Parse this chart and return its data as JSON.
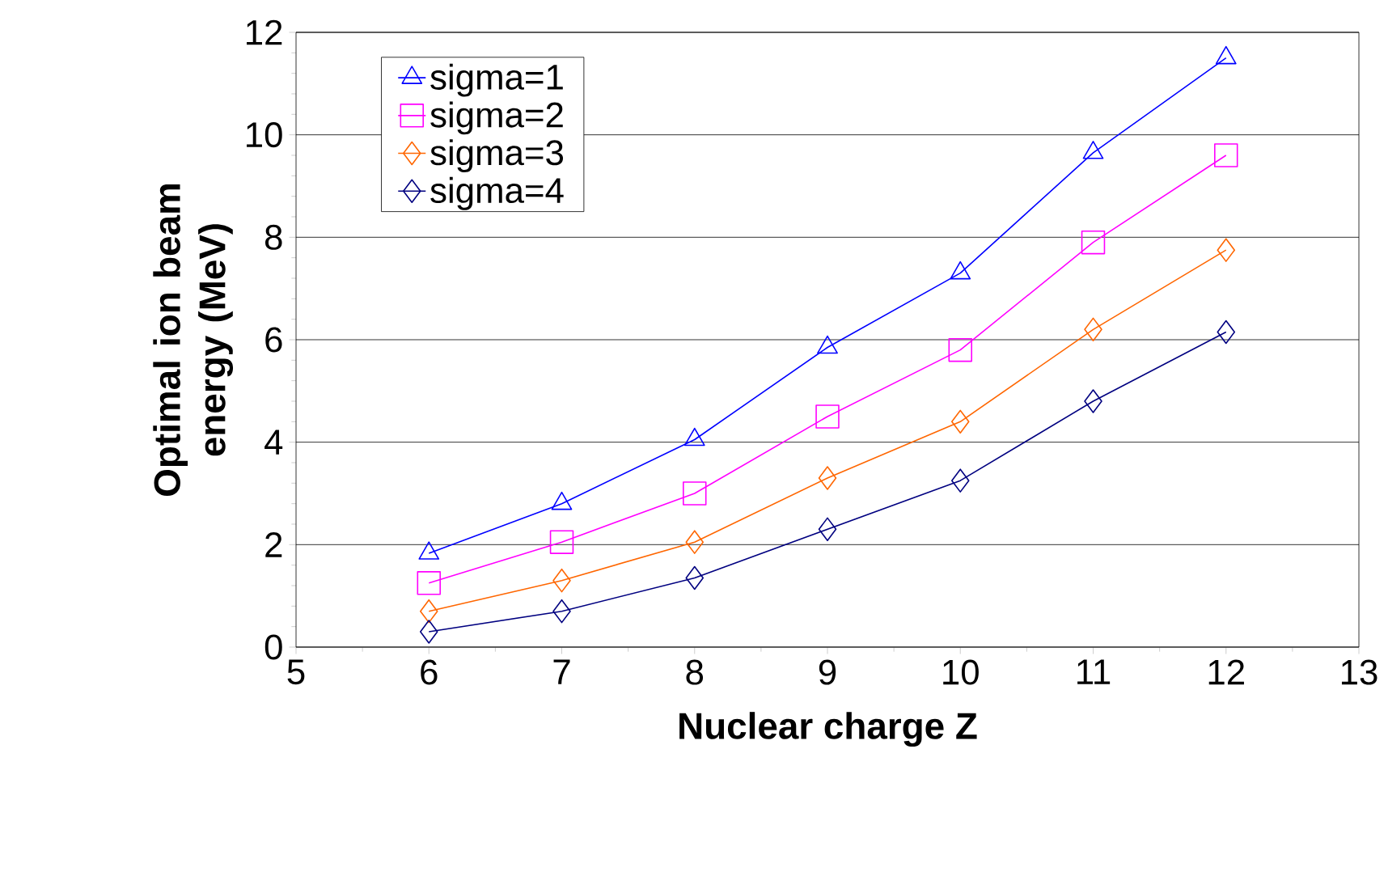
{
  "chart_data": {
    "type": "line",
    "xlabel": "Nuclear charge Z",
    "ylabel": "Optimal ion beam energy (MeV)",
    "x": [
      6,
      7,
      8,
      9,
      10,
      11,
      12
    ],
    "series": [
      {
        "name": "sigma=1",
        "color": "#0000ff",
        "marker": "triangle",
        "values": [
          1.83,
          2.8,
          4.05,
          5.85,
          7.3,
          9.65,
          11.5
        ]
      },
      {
        "name": "sigma=2",
        "color": "#ff00ff",
        "marker": "square",
        "values": [
          1.25,
          2.05,
          3.0,
          4.5,
          5.8,
          7.9,
          9.6
        ]
      },
      {
        "name": "sigma=3",
        "color": "#ff6600",
        "marker": "diamond",
        "values": [
          0.7,
          1.3,
          2.05,
          3.3,
          4.4,
          6.2,
          7.75
        ]
      },
      {
        "name": "sigma=4",
        "color": "#000080",
        "marker": "diamond",
        "values": [
          0.3,
          0.7,
          1.35,
          2.3,
          3.25,
          4.8,
          6.15
        ]
      }
    ],
    "xlim": [
      5,
      13
    ],
    "xticks": [
      5,
      6,
      7,
      8,
      9,
      10,
      11,
      12,
      13
    ],
    "ylim": [
      0,
      12
    ],
    "yticks": [
      0,
      2,
      4,
      6,
      8,
      10,
      12
    ],
    "grid": "y",
    "legend": "top left"
  }
}
